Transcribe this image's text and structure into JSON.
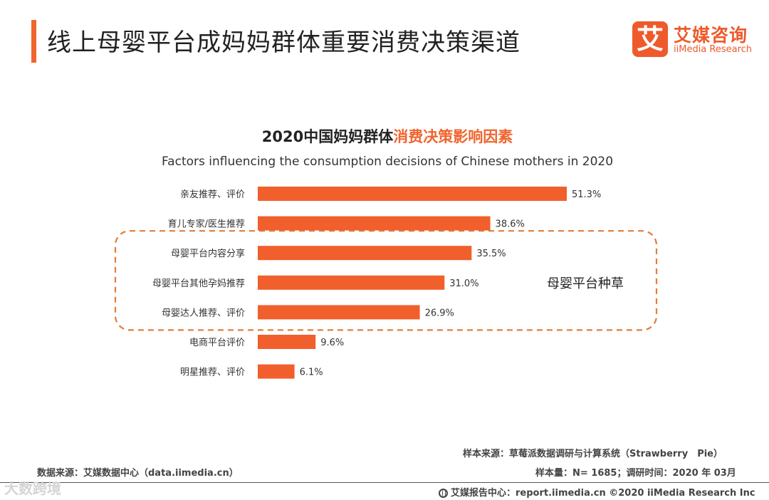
{
  "header": {
    "title": "线上母婴平台成妈妈群体重要消费决策渠道"
  },
  "logo": {
    "mark": "艾",
    "name_cn": "艾媒咨询",
    "name_en": "iiMedia Research"
  },
  "chart_data": {
    "type": "bar",
    "orientation": "horizontal",
    "title_part1": "2020中国妈妈群体",
    "title_part2": "消费决策影响因素",
    "subtitle": "Factors influencing the consumption decisions of Chinese mothers in 2020",
    "categories": [
      "亲友推荐、评价",
      "育儿专家/医生推荐",
      "母婴平台内容分享",
      "母婴平台其他孕妈推荐",
      "母婴达人推荐、评价",
      "电商平台评价",
      "明星推荐、评价"
    ],
    "values": [
      51.3,
      38.6,
      35.5,
      31.0,
      26.9,
      9.6,
      6.1
    ],
    "value_labels": [
      "51.3%",
      "38.6%",
      "35.5%",
      "31.0%",
      "26.9%",
      "9.6%",
      "6.1%"
    ],
    "unit": "%",
    "xlim": [
      0,
      51.3
    ],
    "bar_color": "#f15f2c",
    "grid": false,
    "highlight_group": {
      "label": "母婴平台种草",
      "range": [
        2,
        4
      ],
      "color": "#e07e3e"
    }
  },
  "footer": {
    "data_source": "数据来源：艾媒数据中心（data.iimedia.cn）",
    "sample_source": "样本来源：草莓派数据调研与计算系统（Strawberry　Pie）",
    "sample_size": "样本量：N= 1685；调研时间：2020 年 03月",
    "report_center": "艾媒报告中心：report.iimedia.cn ©2020 iiMedia Research Inc",
    "watermark": "大数跨境"
  },
  "colors": {
    "accent": "#f0652e",
    "brand": "#ee5a2b"
  }
}
